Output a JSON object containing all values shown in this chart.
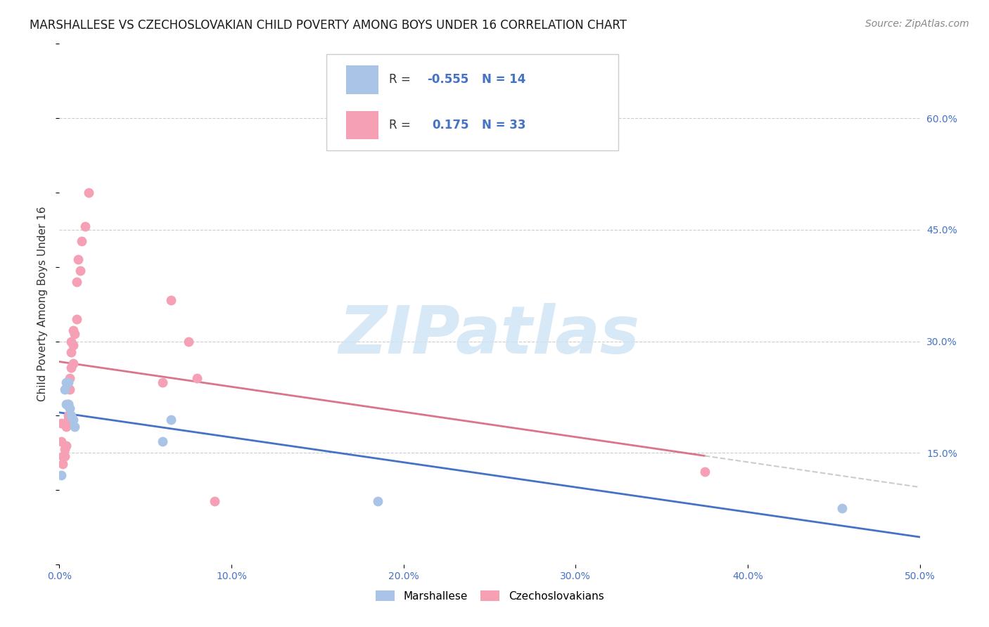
{
  "title": "MARSHALLESE VS CZECHOSLOVAKIAN CHILD POVERTY AMONG BOYS UNDER 16 CORRELATION CHART",
  "source": "Source: ZipAtlas.com",
  "ylabel": "Child Poverty Among Boys Under 16",
  "xlim": [
    0.0,
    0.5
  ],
  "ylim": [
    0.0,
    0.7
  ],
  "xticks": [
    0.0,
    0.1,
    0.2,
    0.3,
    0.4,
    0.5
  ],
  "xticklabels": [
    "0.0%",
    "10.0%",
    "20.0%",
    "30.0%",
    "40.0%",
    "50.0%"
  ],
  "yticks_right": [
    0.15,
    0.3,
    0.45,
    0.6
  ],
  "yticklabels_right": [
    "15.0%",
    "30.0%",
    "45.0%",
    "60.0%"
  ],
  "grid_color": "#cccccc",
  "background_color": "#ffffff",
  "marshallese_color": "#aac4e8",
  "czechoslovakian_color": "#f5a0b5",
  "marshallese_line_color": "#4472c4",
  "czechoslovakian_line_color": "#d9748a",
  "regression_ext_color": "#cccccc",
  "R_marshallese": -0.555,
  "N_marshallese": 14,
  "R_czechoslovakian": 0.175,
  "N_czechoslovakian": 33,
  "marshallese_x": [
    0.001,
    0.003,
    0.004,
    0.004,
    0.005,
    0.005,
    0.006,
    0.007,
    0.008,
    0.009,
    0.06,
    0.065,
    0.185,
    0.455
  ],
  "marshallese_y": [
    0.12,
    0.235,
    0.245,
    0.215,
    0.245,
    0.215,
    0.21,
    0.2,
    0.195,
    0.185,
    0.165,
    0.195,
    0.085,
    0.075
  ],
  "czechoslovakian_x": [
    0.001,
    0.001,
    0.002,
    0.002,
    0.003,
    0.003,
    0.004,
    0.004,
    0.005,
    0.005,
    0.005,
    0.006,
    0.006,
    0.007,
    0.007,
    0.007,
    0.008,
    0.008,
    0.008,
    0.009,
    0.01,
    0.01,
    0.011,
    0.012,
    0.013,
    0.015,
    0.017,
    0.06,
    0.065,
    0.075,
    0.08,
    0.09,
    0.375
  ],
  "czechoslovakian_y": [
    0.165,
    0.19,
    0.135,
    0.145,
    0.145,
    0.155,
    0.16,
    0.185,
    0.195,
    0.2,
    0.215,
    0.235,
    0.25,
    0.265,
    0.285,
    0.3,
    0.27,
    0.295,
    0.315,
    0.31,
    0.33,
    0.38,
    0.41,
    0.395,
    0.435,
    0.455,
    0.5,
    0.245,
    0.355,
    0.3,
    0.25,
    0.085,
    0.125
  ],
  "watermark_text": "ZIPatlas",
  "watermark_color": "#d0e4f5",
  "marker_size": 100,
  "title_fontsize": 12,
  "axis_label_fontsize": 11,
  "tick_fontsize": 10,
  "legend_fontsize": 12,
  "source_fontsize": 10
}
